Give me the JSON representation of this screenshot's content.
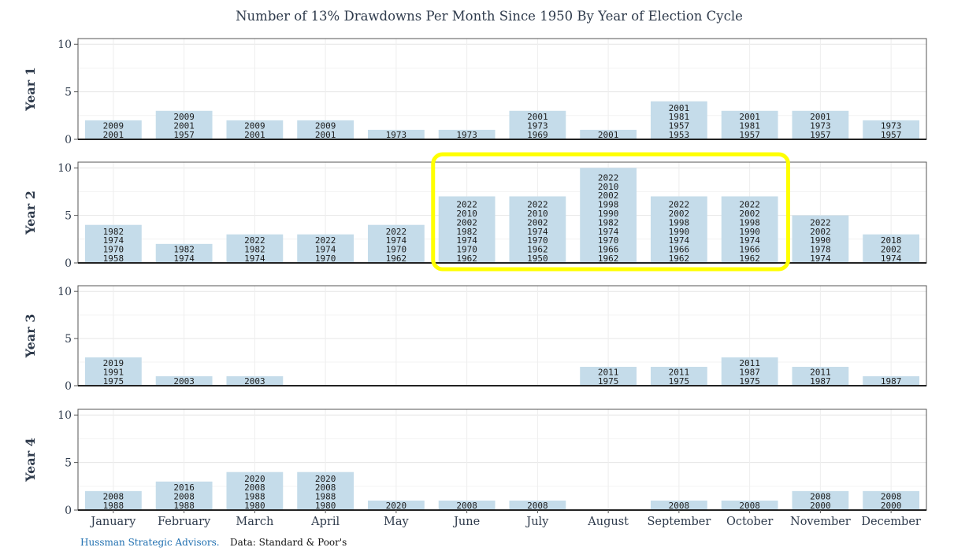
{
  "chart_data": {
    "type": "bar",
    "title": "Number of 13% Drawdowns Per Month Since 1950 By Year of Election Cycle",
    "categories": [
      "January",
      "February",
      "March",
      "April",
      "May",
      "June",
      "July",
      "August",
      "September",
      "October",
      "November",
      "December"
    ],
    "ylim": [
      0,
      10.6
    ],
    "yticks": [
      0,
      5,
      10
    ],
    "grid": true,
    "bar_color": "#c5dcea",
    "highlight": {
      "panel": "Year 2",
      "months": [
        "June",
        "July",
        "August",
        "September",
        "October"
      ],
      "color": "#ffff00"
    },
    "panels": [
      {
        "label": "Year 1",
        "values": [
          2,
          3,
          2,
          2,
          1,
          1,
          3,
          1,
          4,
          3,
          3,
          2
        ],
        "years": [
          [
            "2009",
            "2001"
          ],
          [
            "2009",
            "2001",
            "1957"
          ],
          [
            "2009",
            "2001"
          ],
          [
            "2009",
            "2001"
          ],
          [
            "1973"
          ],
          [
            "1973"
          ],
          [
            "2001",
            "1973",
            "1969"
          ],
          [
            "2001"
          ],
          [
            "2001",
            "1981",
            "1957",
            "1953"
          ],
          [
            "2001",
            "1981",
            "1957"
          ],
          [
            "2001",
            "1973",
            "1957"
          ],
          [
            "1973",
            "1957"
          ]
        ]
      },
      {
        "label": "Year 2",
        "values": [
          4,
          2,
          3,
          3,
          4,
          7,
          7,
          10,
          7,
          7,
          5,
          3
        ],
        "years": [
          [
            "1982",
            "1974",
            "1970",
            "1958"
          ],
          [
            "1982",
            "1974"
          ],
          [
            "2022",
            "1982",
            "1974"
          ],
          [
            "2022",
            "1974",
            "1970"
          ],
          [
            "2022",
            "1974",
            "1970",
            "1962"
          ],
          [
            "2022",
            "2010",
            "2002",
            "1982",
            "1974",
            "1970",
            "1962"
          ],
          [
            "2022",
            "2010",
            "2002",
            "1974",
            "1970",
            "1962",
            "1950"
          ],
          [
            "2022",
            "2010",
            "2002",
            "1998",
            "1990",
            "1982",
            "1974",
            "1970",
            "1966",
            "1962"
          ],
          [
            "2022",
            "2002",
            "1998",
            "1990",
            "1974",
            "1966",
            "1962"
          ],
          [
            "2022",
            "2002",
            "1998",
            "1990",
            "1974",
            "1966",
            "1962"
          ],
          [
            "2022",
            "2002",
            "1990",
            "1978",
            "1974"
          ],
          [
            "2018",
            "2002",
            "1974"
          ]
        ]
      },
      {
        "label": "Year 3",
        "values": [
          3,
          1,
          1,
          0,
          0,
          0,
          0,
          2,
          2,
          3,
          2,
          1
        ],
        "years": [
          [
            "2019",
            "1991",
            "1975"
          ],
          [
            "2003"
          ],
          [
            "2003"
          ],
          [],
          [],
          [],
          [],
          [
            "2011",
            "1975"
          ],
          [
            "2011",
            "1975"
          ],
          [
            "2011",
            "1987",
            "1975"
          ],
          [
            "2011",
            "1987"
          ],
          [
            "1987"
          ]
        ]
      },
      {
        "label": "Year 4",
        "values": [
          2,
          3,
          4,
          4,
          1,
          1,
          1,
          0,
          1,
          1,
          2,
          2
        ],
        "years": [
          [
            "2008",
            "1988"
          ],
          [
            "2016",
            "2008",
            "1988"
          ],
          [
            "2020",
            "2008",
            "1988",
            "1980"
          ],
          [
            "2020",
            "2008",
            "1988",
            "1980"
          ],
          [
            "2020"
          ],
          [
            "2008"
          ],
          [
            "2008"
          ],
          [],
          [
            "2008"
          ],
          [
            "2008"
          ],
          [
            "2008",
            "2000"
          ],
          [
            "2008",
            "2000"
          ]
        ]
      }
    ]
  },
  "footer": {
    "source": "Hussman Strategic Advisors.",
    "data": "Data: Standard & Poor's"
  }
}
